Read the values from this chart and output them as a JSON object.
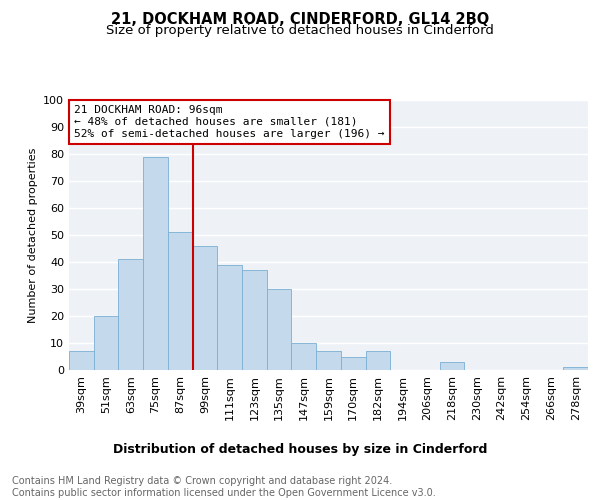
{
  "title": "21, DOCKHAM ROAD, CINDERFORD, GL14 2BQ",
  "subtitle": "Size of property relative to detached houses in Cinderford",
  "xlabel": "Distribution of detached houses by size in Cinderford",
  "ylabel": "Number of detached properties",
  "categories": [
    "39sqm",
    "51sqm",
    "63sqm",
    "75sqm",
    "87sqm",
    "99sqm",
    "111sqm",
    "123sqm",
    "135sqm",
    "147sqm",
    "159sqm",
    "170sqm",
    "182sqm",
    "194sqm",
    "206sqm",
    "218sqm",
    "230sqm",
    "242sqm",
    "254sqm",
    "266sqm",
    "278sqm"
  ],
  "values": [
    7,
    20,
    41,
    79,
    51,
    46,
    39,
    37,
    30,
    10,
    7,
    5,
    7,
    0,
    0,
    3,
    0,
    0,
    0,
    0,
    1
  ],
  "bar_color": "#c5d9ed",
  "bar_edge_color": "#7aafd4",
  "vline_color": "#cc0000",
  "annotation_text": "21 DOCKHAM ROAD: 96sqm\n← 48% of detached houses are smaller (181)\n52% of semi-detached houses are larger (196) →",
  "annotation_box_facecolor": "#ffffff",
  "annotation_box_edgecolor": "#cc0000",
  "ylim": [
    0,
    100
  ],
  "yticks": [
    0,
    10,
    20,
    30,
    40,
    50,
    60,
    70,
    80,
    90,
    100
  ],
  "footer_text": "Contains HM Land Registry data © Crown copyright and database right 2024.\nContains public sector information licensed under the Open Government Licence v3.0.",
  "bg_color": "#eef2f7",
  "grid_color": "#ffffff",
  "title_fontsize": 10.5,
  "subtitle_fontsize": 9.5,
  "xlabel_fontsize": 9,
  "ylabel_fontsize": 8,
  "tick_fontsize": 8,
  "annotation_fontsize": 8,
  "footer_fontsize": 7
}
